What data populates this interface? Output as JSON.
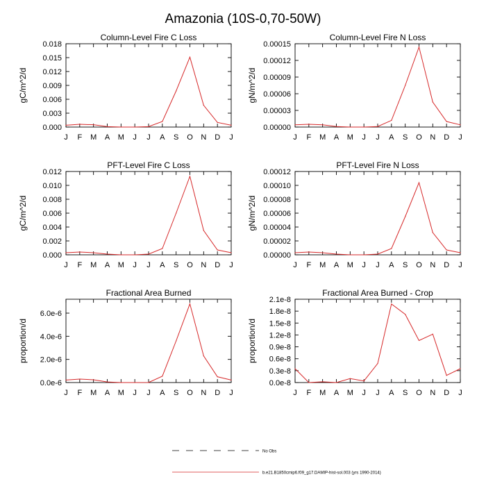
{
  "figure": {
    "title": "Amazonia (10S-0,70-50W)",
    "legend": [
      {
        "label": "No Obs",
        "style": "dashed",
        "color": "#000000"
      },
      {
        "label": "b.e21.B1850cmip6.f09_g17.DAMIP-hist-sol.003 (yrs 1990-2014)",
        "style": "solid",
        "color": "#d62728"
      }
    ]
  },
  "chart_data": [
    {
      "type": "line",
      "title": "Column-Level Fire C Loss",
      "ylabel": "gC/m^2/d",
      "categories": [
        "J",
        "F",
        "M",
        "A",
        "M",
        "J",
        "J",
        "A",
        "S",
        "O",
        "N",
        "D",
        "J"
      ],
      "ylim": [
        0,
        0.018
      ],
      "yticks": [
        "0.000",
        "0.003",
        "0.006",
        "0.009",
        "0.012",
        "0.015",
        "0.018"
      ],
      "series": [
        {
          "color": "#d62728",
          "values": [
            0.0004,
            0.0006,
            0.0005,
            0.0001,
            0.0,
            0.0,
            0.0001,
            0.0012,
            0.0078,
            0.0151,
            0.0047,
            0.001,
            0.0004
          ]
        }
      ]
    },
    {
      "type": "line",
      "title": "Column-Level Fire N Loss",
      "ylabel": "gN/m^2/d",
      "categories": [
        "J",
        "F",
        "M",
        "A",
        "M",
        "J",
        "J",
        "A",
        "S",
        "O",
        "N",
        "D",
        "J"
      ],
      "ylim": [
        0,
        0.00015
      ],
      "yticks": [
        "0.00000",
        "0.00003",
        "0.00006",
        "0.00009",
        "0.00012",
        "0.00015"
      ],
      "series": [
        {
          "color": "#d62728",
          "values": [
            4e-06,
            5e-06,
            4e-06,
            1e-06,
            0.0,
            0.0,
            1e-06,
            1.2e-05,
            7.5e-05,
            0.000144,
            4.5e-05,
            1e-05,
            4e-06
          ]
        }
      ]
    },
    {
      "type": "line",
      "title": "PFT-Level Fire C Loss",
      "ylabel": "gC/m^2/d",
      "categories": [
        "J",
        "F",
        "M",
        "A",
        "M",
        "J",
        "J",
        "A",
        "S",
        "O",
        "N",
        "D",
        "J"
      ],
      "ylim": [
        0,
        0.012
      ],
      "yticks": [
        "0.000",
        "0.002",
        "0.004",
        "0.006",
        "0.008",
        "0.010",
        "0.012"
      ],
      "series": [
        {
          "color": "#d62728",
          "values": [
            0.0003,
            0.0004,
            0.0003,
            0.0001,
            0.0,
            0.0,
            0.0001,
            0.0009,
            0.006,
            0.0113,
            0.0035,
            0.0007,
            0.0003
          ]
        }
      ]
    },
    {
      "type": "line",
      "title": "PFT-Level Fire N Loss",
      "ylabel": "gN/m^2/d",
      "categories": [
        "J",
        "F",
        "M",
        "A",
        "M",
        "J",
        "J",
        "A",
        "S",
        "O",
        "N",
        "D",
        "J"
      ],
      "ylim": [
        0,
        0.00012
      ],
      "yticks": [
        "0.00000",
        "0.00002",
        "0.00004",
        "0.00006",
        "0.00008",
        "0.00010",
        "0.00012"
      ],
      "series": [
        {
          "color": "#d62728",
          "values": [
            3e-06,
            4e-06,
            3e-06,
            1e-06,
            0.0,
            0.0,
            1e-06,
            9e-06,
            5.5e-05,
            0.000104,
            3.2e-05,
            7e-06,
            3e-06
          ]
        }
      ]
    },
    {
      "type": "line",
      "title": "Fractional Area Burned",
      "ylabel": "proportion/d",
      "categories": [
        "J",
        "F",
        "M",
        "A",
        "M",
        "J",
        "J",
        "A",
        "S",
        "O",
        "N",
        "D",
        "J"
      ],
      "ylim": [
        0,
        7.2e-06
      ],
      "yticks": [
        "0.0e-6",
        "2.0e-6",
        "4.0e-6",
        "6.0e-6"
      ],
      "ytick_values": [
        0,
        2e-06,
        4e-06,
        6e-06
      ],
      "series": [
        {
          "color": "#d62728",
          "values": [
            2.2e-07,
            3e-07,
            2.4e-07,
            5e-08,
            0.0,
            0.0,
            1e-08,
            5.5e-07,
            3.6e-06,
            6.8e-06,
            2.3e-06,
            5e-07,
            2.2e-07
          ]
        }
      ]
    },
    {
      "type": "line",
      "title": "Fractional Area Burned - Crop",
      "ylabel": "proportion/d",
      "categories": [
        "J",
        "F",
        "M",
        "A",
        "M",
        "J",
        "J",
        "A",
        "S",
        "O",
        "N",
        "D",
        "J"
      ],
      "ylim": [
        0,
        2.1e-08
      ],
      "yticks": [
        "0.0e-8",
        "0.3e-8",
        "0.6e-8",
        "0.9e-8",
        "1.2e-8",
        "1.5e-8",
        "1.8e-8",
        "2.1e-8"
      ],
      "series": [
        {
          "color": "#d62728",
          "values": [
            3.5e-09,
            0.0,
            2e-10,
            0.0,
            1e-09,
            4e-10,
            4.8e-09,
            1.98e-08,
            1.72e-08,
            1.06e-08,
            1.22e-08,
            1.8e-09,
            3.5e-09
          ]
        }
      ]
    }
  ]
}
